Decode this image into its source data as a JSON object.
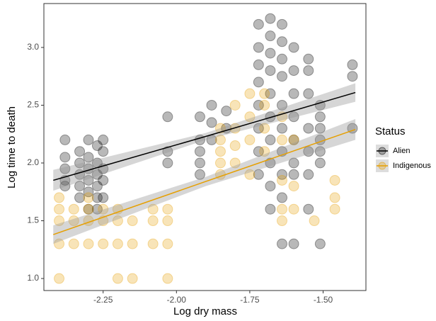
{
  "chart_data": {
    "type": "scatter",
    "x_label": "Log dry mass",
    "y_label": "Log time to death",
    "legend_title": "Status",
    "legend_position": "right",
    "xlim": [
      -2.452,
      -1.354
    ],
    "ylim": [
      0.896,
      3.38
    ],
    "xticks": [
      {
        "value": -2.25,
        "label": "-2.25"
      },
      {
        "value": -2.0,
        "label": "-2.00"
      },
      {
        "value": -1.75,
        "label": "-1.75"
      },
      {
        "value": -1.5,
        "label": "-1.50"
      }
    ],
    "yticks": [
      {
        "value": 1.0,
        "label": "1.0"
      },
      {
        "value": 1.5,
        "label": "1.5"
      },
      {
        "value": 2.0,
        "label": "2.0"
      },
      {
        "value": 2.5,
        "label": "2.5"
      },
      {
        "value": 3.0,
        "label": "3.0"
      }
    ],
    "series": [
      {
        "name": "Alien",
        "color": "#000000",
        "x": [
          -2.38,
          -2.38,
          -2.38,
          -2.38,
          -2.38,
          -2.33,
          -2.33,
          -2.33,
          -2.33,
          -2.33,
          -2.3,
          -2.3,
          -2.3,
          -2.3,
          -2.3,
          -2.3,
          -2.27,
          -2.27,
          -2.27,
          -2.27,
          -2.27,
          -2.27,
          -2.25,
          -2.25,
          -2.25,
          -2.25,
          -2.25,
          -2.03,
          -2.03,
          -2.03,
          -1.92,
          -1.92,
          -1.92,
          -1.92,
          -1.92,
          -1.88,
          -1.88,
          -1.88,
          -1.83,
          -1.83,
          -1.72,
          -1.72,
          -1.72,
          -1.72,
          -1.72,
          -1.72,
          -1.72,
          -1.72,
          -1.68,
          -1.68,
          -1.68,
          -1.68,
          -1.68,
          -1.68,
          -1.68,
          -1.68,
          -1.68,
          -1.68,
          -1.64,
          -1.64,
          -1.64,
          -1.64,
          -1.64,
          -1.64,
          -1.64,
          -1.64,
          -1.64,
          -1.64,
          -1.6,
          -1.6,
          -1.6,
          -1.6,
          -1.6,
          -1.6,
          -1.6,
          -1.6,
          -1.55,
          -1.55,
          -1.55,
          -1.55,
          -1.55,
          -1.55,
          -1.55,
          -1.51,
          -1.51,
          -1.51,
          -1.51,
          -1.51,
          -1.51,
          -1.51,
          -1.4,
          -1.4,
          -1.4
        ],
        "y": [
          2.2,
          2.05,
          1.95,
          1.85,
          1.8,
          2.1,
          2.0,
          1.9,
          1.8,
          1.7,
          2.2,
          2.05,
          1.95,
          1.85,
          1.75,
          1.6,
          2.15,
          2.0,
          1.9,
          1.8,
          1.7,
          1.6,
          2.2,
          2.1,
          1.95,
          1.85,
          1.7,
          2.4,
          2.1,
          2.0,
          2.4,
          2.2,
          2.1,
          2.0,
          1.9,
          2.5,
          2.35,
          2.2,
          2.45,
          2.3,
          3.2,
          3.0,
          2.85,
          2.7,
          2.5,
          2.3,
          2.1,
          1.9,
          3.25,
          3.1,
          2.95,
          2.8,
          2.6,
          2.4,
          2.2,
          2.0,
          1.8,
          1.6,
          3.2,
          3.05,
          2.9,
          2.75,
          2.5,
          2.3,
          2.1,
          1.9,
          1.7,
          1.3,
          3.0,
          2.8,
          2.6,
          2.4,
          2.2,
          2.0,
          1.9,
          1.3,
          2.9,
          2.8,
          2.6,
          2.3,
          2.1,
          1.9,
          1.6,
          2.5,
          2.4,
          2.3,
          2.2,
          2.1,
          2.0,
          1.3,
          2.85,
          2.75,
          2.3
        ],
        "fit": {
          "x": [
            -2.42,
            -1.9,
            -1.39
          ],
          "y": [
            1.85,
            2.23,
            2.61
          ],
          "lower": [
            1.76,
            2.2,
            2.53
          ],
          "upper": [
            1.94,
            2.26,
            2.69
          ]
        }
      },
      {
        "name": "Indigenous",
        "color": "#E69F00",
        "x": [
          -2.4,
          -2.4,
          -2.4,
          -2.4,
          -2.4,
          -2.35,
          -2.35,
          -2.35,
          -2.3,
          -2.3,
          -2.3,
          -2.3,
          -2.25,
          -2.25,
          -2.25,
          -2.2,
          -2.2,
          -2.2,
          -2.2,
          -2.15,
          -2.15,
          -2.15,
          -2.08,
          -2.08,
          -2.08,
          -2.03,
          -2.03,
          -2.03,
          -2.03,
          -1.85,
          -1.85,
          -1.85,
          -1.85,
          -1.85,
          -1.8,
          -1.8,
          -1.8,
          -1.8,
          -1.75,
          -1.75,
          -1.75,
          -1.75,
          -1.7,
          -1.7,
          -1.7,
          -1.7,
          -1.64,
          -1.64,
          -1.64,
          -1.64,
          -1.64,
          -1.6,
          -1.6,
          -1.6,
          -1.53,
          -1.46,
          -1.46,
          -1.46
        ],
        "y": [
          1.7,
          1.6,
          1.5,
          1.3,
          1.0,
          1.6,
          1.5,
          1.3,
          1.7,
          1.6,
          1.5,
          1.3,
          1.6,
          1.5,
          1.3,
          1.6,
          1.5,
          1.3,
          1.0,
          1.5,
          1.3,
          1.0,
          1.6,
          1.5,
          1.3,
          1.6,
          1.5,
          1.3,
          1.0,
          2.3,
          2.2,
          2.1,
          2.0,
          1.9,
          2.5,
          2.3,
          2.15,
          2.0,
          2.6,
          2.4,
          2.2,
          1.9,
          2.6,
          2.5,
          2.3,
          2.1,
          2.4,
          2.2,
          1.85,
          1.6,
          1.5,
          2.2,
          1.8,
          1.6,
          1.5,
          1.85,
          1.7,
          1.6
        ],
        "fit": {
          "x": [
            -2.42,
            -1.9,
            -1.39
          ],
          "y": [
            1.38,
            1.84,
            2.29
          ],
          "lower": [
            1.3,
            1.8,
            2.2
          ],
          "upper": [
            1.46,
            1.88,
            2.38
          ]
        }
      }
    ]
  }
}
